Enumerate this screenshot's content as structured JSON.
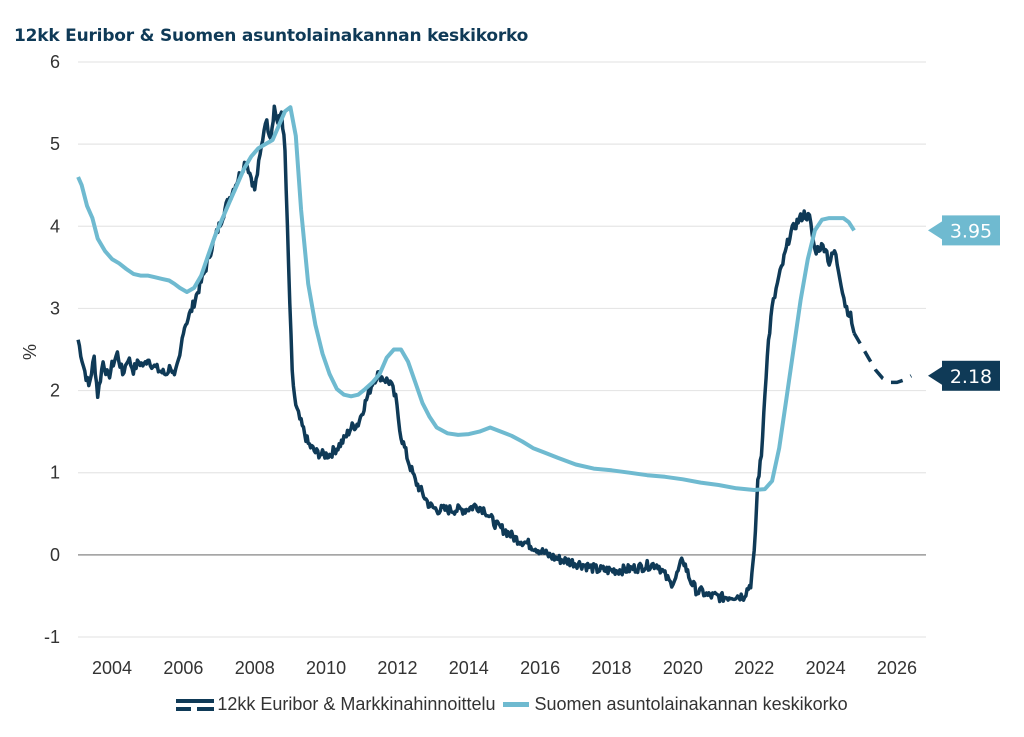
{
  "chart_data": {
    "type": "line",
    "title": "12kk Euribor & Suomen asuntolainakannan keskikorko",
    "xlabel": "",
    "ylabel": "%",
    "xlim": [
      2003.05,
      2026.8
    ],
    "ylim": [
      -1,
      6
    ],
    "grid": true,
    "x_ticks": [
      "2004",
      "2006",
      "2008",
      "2010",
      "2012",
      "2014",
      "2016",
      "2018",
      "2020",
      "2022",
      "2024",
      "2026"
    ],
    "y_ticks": [
      "6",
      "5",
      "4",
      "3",
      "2",
      "1",
      "0",
      "-1"
    ],
    "legend_position": "bottom",
    "series": [
      {
        "name": "12kk Euribor & Markkinahinnoittelu",
        "color": "#0f3a57",
        "style": "solid",
        "x": [
          2003.05,
          2003.2,
          2003.35,
          2003.5,
          2003.6,
          2003.75,
          2003.9,
          2004.0,
          2004.15,
          2004.3,
          2004.45,
          2004.6,
          2004.75,
          2004.9,
          2005.0,
          2005.15,
          2005.3,
          2005.5,
          2005.65,
          2005.75,
          2005.9,
          2006.0,
          2006.2,
          2006.4,
          2006.6,
          2006.8,
          2007.0,
          2007.2,
          2007.4,
          2007.6,
          2007.75,
          2007.9,
          2008.0,
          2008.15,
          2008.3,
          2008.45,
          2008.55,
          2008.65,
          2008.75,
          2008.85,
          2008.95,
          2009.05,
          2009.15,
          2009.3,
          2009.5,
          2009.7,
          2009.9,
          2010.1,
          2010.3,
          2010.5,
          2010.7,
          2010.9,
          2011.1,
          2011.3,
          2011.45,
          2011.6,
          2011.8,
          2011.95,
          2012.1,
          2012.3,
          2012.5,
          2012.7,
          2012.9,
          2013.1,
          2013.3,
          2013.6,
          2013.9,
          2014.2,
          2014.45,
          2014.6,
          2014.8,
          2015.0,
          2015.3,
          2015.6,
          2015.9,
          2016.2,
          2016.5,
          2016.8,
          2017.2,
          2017.6,
          2018.0,
          2018.4,
          2018.8,
          2019.1,
          2019.3,
          2019.5,
          2019.65,
          2019.8,
          2020.0,
          2020.2,
          2020.4,
          2020.55,
          2020.7,
          2020.9,
          2021.1,
          2021.4,
          2021.7,
          2021.9,
          2022.0,
          2022.1,
          2022.2,
          2022.3,
          2022.4,
          2022.5,
          2022.65,
          2022.8,
          2023.0,
          2023.2,
          2023.4,
          2023.55,
          2023.7,
          2023.85,
          2024.0,
          2024.1,
          2024.25,
          2024.4,
          2024.55,
          2024.7,
          2024.8
        ],
        "values": [
          2.62,
          2.3,
          2.05,
          2.4,
          1.95,
          2.35,
          2.15,
          2.3,
          2.45,
          2.2,
          2.4,
          2.25,
          2.35,
          2.3,
          2.4,
          2.3,
          2.25,
          2.2,
          2.3,
          2.15,
          2.4,
          2.75,
          2.95,
          3.2,
          3.45,
          3.75,
          4.0,
          4.25,
          4.45,
          4.65,
          4.8,
          4.6,
          4.45,
          4.85,
          5.3,
          5.1,
          5.45,
          5.25,
          5.4,
          4.9,
          3.5,
          2.2,
          1.8,
          1.6,
          1.35,
          1.25,
          1.22,
          1.22,
          1.3,
          1.4,
          1.55,
          1.6,
          1.85,
          2.1,
          2.2,
          2.15,
          2.1,
          1.9,
          1.45,
          1.15,
          0.9,
          0.75,
          0.6,
          0.55,
          0.55,
          0.55,
          0.55,
          0.6,
          0.55,
          0.45,
          0.35,
          0.3,
          0.2,
          0.15,
          0.08,
          0.0,
          -0.05,
          -0.08,
          -0.12,
          -0.18,
          -0.19,
          -0.18,
          -0.15,
          -0.12,
          -0.12,
          -0.25,
          -0.35,
          -0.28,
          -0.05,
          -0.3,
          -0.45,
          -0.45,
          -0.5,
          -0.5,
          -0.52,
          -0.5,
          -0.5,
          -0.35,
          0.0,
          0.9,
          1.2,
          2.0,
          2.6,
          3.0,
          3.3,
          3.55,
          3.9,
          4.05,
          4.15,
          4.1,
          3.7,
          3.75,
          3.75,
          3.55,
          3.7,
          3.4,
          3.05,
          2.9,
          2.7
        ]
      },
      {
        "name": "12kk Euribor & Markkinahinnoittelu (markkinahinnoittelu)",
        "color": "#0f3a57",
        "style": "dashed",
        "x": [
          2024.8,
          2025.0,
          2025.2,
          2025.4,
          2025.6,
          2025.8,
          2026.0,
          2026.2,
          2026.4
        ],
        "values": [
          2.7,
          2.55,
          2.4,
          2.25,
          2.15,
          2.1,
          2.1,
          2.13,
          2.18
        ]
      },
      {
        "name": "Suomen asuntolainakannan keskikorko",
        "color": "#6fbad0",
        "style": "solid",
        "x": [
          2003.05,
          2003.15,
          2003.3,
          2003.45,
          2003.6,
          2003.8,
          2004.0,
          2004.2,
          2004.4,
          2004.6,
          2004.8,
          2005.0,
          2005.2,
          2005.4,
          2005.6,
          2005.75,
          2005.9,
          2006.1,
          2006.3,
          2006.5,
          2006.7,
          2006.9,
          2007.1,
          2007.3,
          2007.5,
          2007.7,
          2007.9,
          2008.1,
          2008.3,
          2008.5,
          2008.7,
          2008.85,
          2009.0,
          2009.15,
          2009.3,
          2009.5,
          2009.7,
          2009.9,
          2010.1,
          2010.3,
          2010.5,
          2010.7,
          2010.9,
          2011.1,
          2011.3,
          2011.5,
          2011.7,
          2011.9,
          2012.1,
          2012.3,
          2012.5,
          2012.7,
          2012.9,
          2013.1,
          2013.4,
          2013.7,
          2014.0,
          2014.3,
          2014.6,
          2014.9,
          2015.2,
          2015.5,
          2015.8,
          2016.1,
          2016.5,
          2017.0,
          2017.5,
          2018.0,
          2018.5,
          2019.0,
          2019.5,
          2020.0,
          2020.5,
          2021.0,
          2021.5,
          2022.0,
          2022.3,
          2022.5,
          2022.7,
          2022.9,
          2023.1,
          2023.3,
          2023.5,
          2023.7,
          2023.9,
          2024.1,
          2024.3,
          2024.5,
          2024.65,
          2024.8
        ],
        "values": [
          4.6,
          4.5,
          4.25,
          4.1,
          3.85,
          3.7,
          3.6,
          3.55,
          3.48,
          3.42,
          3.4,
          3.4,
          3.38,
          3.36,
          3.34,
          3.3,
          3.25,
          3.2,
          3.25,
          3.4,
          3.65,
          3.9,
          4.1,
          4.3,
          4.5,
          4.7,
          4.85,
          4.95,
          5.0,
          5.05,
          5.25,
          5.4,
          5.45,
          5.1,
          4.2,
          3.3,
          2.8,
          2.45,
          2.2,
          2.02,
          1.95,
          1.93,
          1.95,
          2.02,
          2.1,
          2.2,
          2.4,
          2.5,
          2.5,
          2.35,
          2.1,
          1.85,
          1.68,
          1.55,
          1.48,
          1.46,
          1.47,
          1.5,
          1.55,
          1.5,
          1.45,
          1.38,
          1.3,
          1.25,
          1.18,
          1.1,
          1.05,
          1.03,
          1.0,
          0.97,
          0.95,
          0.92,
          0.88,
          0.85,
          0.81,
          0.79,
          0.8,
          0.9,
          1.3,
          1.9,
          2.5,
          3.1,
          3.6,
          3.95,
          4.08,
          4.1,
          4.1,
          4.1,
          4.05,
          3.95
        ]
      }
    ],
    "annotations": [
      {
        "label": "3.95",
        "series": "Suomen asuntolainakannan keskikorko",
        "value": 3.95,
        "color": "#6fbad0"
      },
      {
        "label": "2.18",
        "series": "12kk Euribor & Markkinahinnoittelu",
        "value": 2.18,
        "color": "#0f3a57"
      }
    ]
  },
  "legend": {
    "items": [
      {
        "label": "12kk Euribor & Markkinahinnoittelu",
        "color": "#0f3a57"
      },
      {
        "label": "Suomen asuntolainakannan keskikorko",
        "color": "#6fbad0"
      }
    ]
  }
}
